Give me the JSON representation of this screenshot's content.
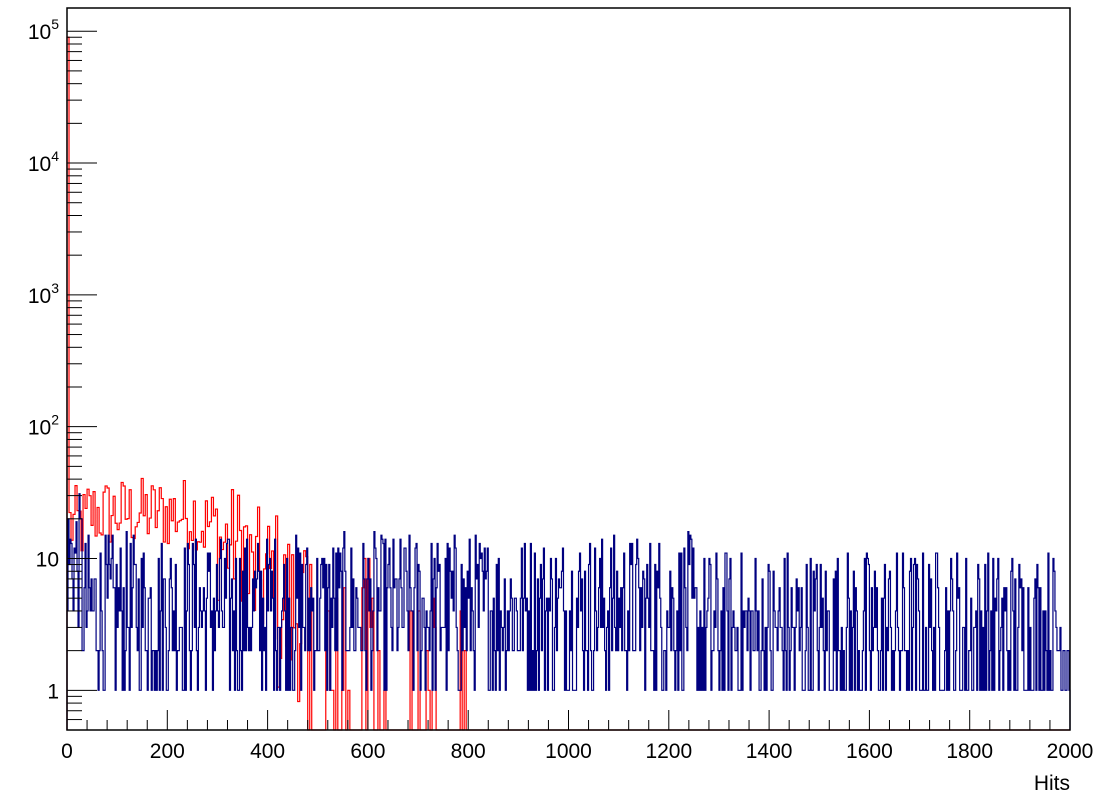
{
  "chart_data": {
    "type": "line",
    "style": "histogram-steps",
    "title": "",
    "xlabel": "Hits",
    "ylabel": "",
    "xlim": [
      0,
      2000
    ],
    "ylim": [
      0.5,
      150000
    ],
    "y_scale": "log",
    "grid": false,
    "legend": "none",
    "x_ticks": [
      0,
      200,
      400,
      600,
      800,
      1000,
      1200,
      1400,
      1600,
      1800,
      2000
    ],
    "x_tick_labels": [
      "0",
      "200",
      "400",
      "600",
      "800",
      "1000",
      "1200",
      "1400",
      "1600",
      "1800",
      "2000"
    ],
    "y_ticks": [
      1,
      10,
      100,
      1000,
      10000,
      100000
    ],
    "y_tick_labels": [
      {
        "base": "1",
        "exp": ""
      },
      {
        "base": "10",
        "exp": ""
      },
      {
        "base": "10",
        "exp": "2"
      },
      {
        "base": "10",
        "exp": "3"
      },
      {
        "base": "10",
        "exp": "4"
      },
      {
        "base": "10",
        "exp": "5"
      }
    ],
    "series": [
      {
        "color": "#ff0000",
        "bin_width": 4,
        "spike": {
          "x": 0,
          "y": 90000
        },
        "segments": [
          {
            "x0": 4,
            "x1": 40,
            "y_mid": 18,
            "spread": 0.3
          },
          {
            "x0": 40,
            "x1": 260,
            "y_mid": 22,
            "spread": 0.28
          },
          {
            "x0": 260,
            "x1": 300,
            "y_mid": 18,
            "spread": 0.3
          },
          {
            "x0": 300,
            "x1": 360,
            "y_mid": 13,
            "spread": 0.45
          },
          {
            "x0": 360,
            "x1": 420,
            "y_mid": 7,
            "spread": 0.55
          },
          {
            "x0": 420,
            "x1": 480,
            "y_mid": 4,
            "spread": 0.7
          },
          {
            "x0": 480,
            "x1": 540,
            "y_mid": 2,
            "spread": 0.9
          },
          {
            "x0": 540,
            "x1": 660,
            "y_mid": 0.9,
            "spread": 1.1
          },
          {
            "x0": 660,
            "x1": 800,
            "y_mid": 0.4,
            "spread": 1.2
          },
          {
            "x0": 800,
            "x1": 2000,
            "y_mid": 0,
            "spread": 0
          }
        ]
      },
      {
        "color": "#000080",
        "bin_width": 2,
        "segments": [
          {
            "x0": 0,
            "x1": 30,
            "y_mid": 10,
            "spread": 0.5
          },
          {
            "x0": 30,
            "x1": 1250,
            "y_mid": 4,
            "spread": 0.6
          },
          {
            "x0": 1250,
            "x1": 2000,
            "y_mid": 2.5,
            "spread": 0.7
          }
        ]
      }
    ]
  }
}
